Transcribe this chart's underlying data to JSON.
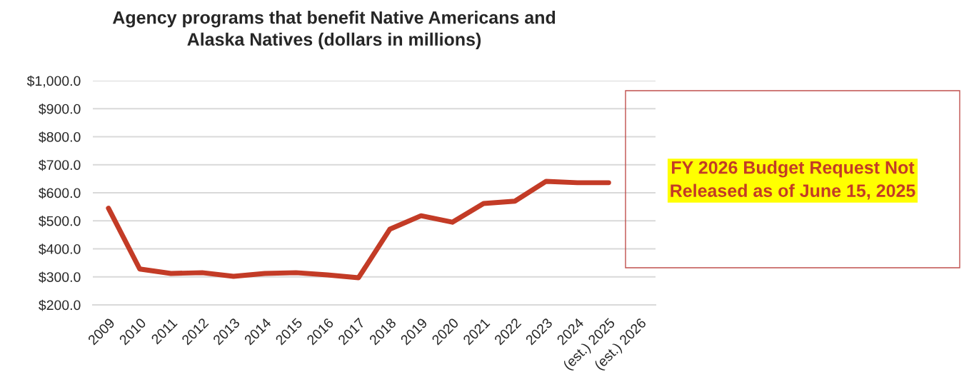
{
  "chart_data": {
    "type": "line",
    "title": "Agency programs that benefit Native Americans and\nAlaska Natives (dollars in millions)",
    "categories": [
      "2009",
      "2010",
      "2011",
      "2012",
      "2013",
      "2014",
      "2015",
      "2016",
      "2017",
      "2018",
      "2019",
      "2020",
      "2021",
      "2022",
      "2023",
      "2024",
      "(est.) 2025",
      "(est.) 2026"
    ],
    "series": [
      {
        "color": "#c33b26",
        "values": [
          545,
          328,
          312,
          315,
          302,
          312,
          315,
          307,
          297,
          470,
          518,
          495,
          562,
          570,
          641,
          636,
          636,
          null
        ]
      }
    ],
    "ylim": [
      200,
      1000
    ],
    "yticks": [
      {
        "value": 200,
        "label": "$200.0"
      },
      {
        "value": 300,
        "label": "$300.0"
      },
      {
        "value": 400,
        "label": "$400.0"
      },
      {
        "value": 500,
        "label": "$500.0"
      },
      {
        "value": 600,
        "label": "$600.0"
      },
      {
        "value": 700,
        "label": "$700.0"
      },
      {
        "value": 800,
        "label": "$800.0"
      },
      {
        "value": 900,
        "label": "$900.0"
      },
      {
        "value": 1000,
        "label": "$1,000.0"
      }
    ],
    "grid": "y",
    "marker": "none",
    "line_style": "solid",
    "annotations": [
      "FY 2026 Budget Request Not\nReleased as of June 15, 2025"
    ]
  }
}
